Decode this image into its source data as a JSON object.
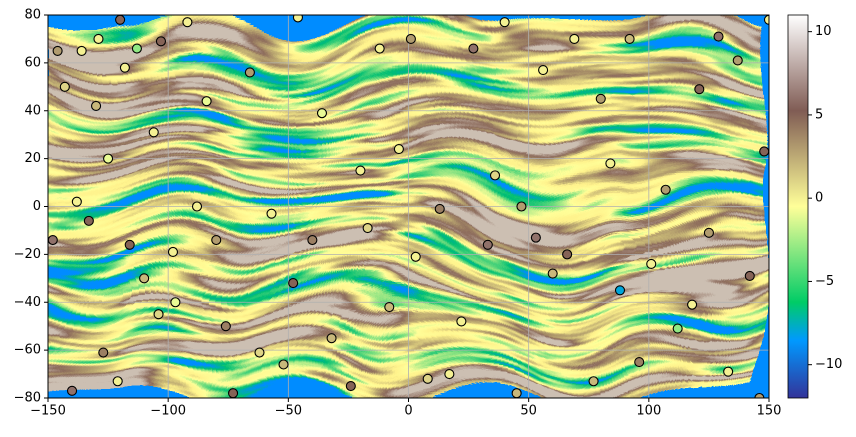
{
  "chart_data": {
    "type": "scatter",
    "x": [
      -148,
      -146,
      -143,
      -140,
      -138,
      -136,
      -133,
      -130,
      -129,
      -127,
      -125,
      -121,
      -120,
      -118,
      -116,
      -113,
      -110,
      -106,
      -104,
      -103,
      -98,
      -97,
      -92,
      -88,
      -84,
      -80,
      -76,
      -73,
      -66,
      -62,
      -57,
      -52,
      -48,
      -46,
      -40,
      -36,
      -32,
      -24,
      -20,
      -17,
      -12,
      -8,
      -4,
      1,
      3,
      8,
      13,
      17,
      22,
      27,
      33,
      36,
      40,
      45,
      47,
      53,
      56,
      60,
      66,
      69,
      77,
      80,
      84,
      88,
      92,
      96,
      101,
      107,
      112,
      118,
      121,
      125,
      129,
      133,
      137,
      142,
      146,
      148,
      150
    ],
    "y": [
      -14,
      65,
      50,
      -77,
      2,
      65,
      -6,
      42,
      70,
      -61,
      20,
      -73,
      78,
      58,
      -16,
      66,
      -30,
      31,
      -45,
      69,
      -19,
      -40,
      77,
      0,
      44,
      -14,
      -50,
      -78,
      56,
      -61,
      -3,
      -66,
      -32,
      79,
      -14,
      39,
      -55,
      -75,
      15,
      -9,
      66,
      -42,
      24,
      70,
      -21,
      -72,
      -1,
      -70,
      -48,
      66,
      -16,
      13,
      77,
      -78,
      0,
      -13,
      57,
      -28,
      -20,
      70,
      -73,
      45,
      18,
      -35,
      70,
      -65,
      -24,
      7,
      -51,
      -41,
      49,
      -11,
      71,
      -69,
      61,
      -29,
      -80,
      23,
      78
    ],
    "values": [
      6,
      3,
      1,
      6,
      0,
      0,
      5,
      2,
      0,
      4,
      -1,
      0,
      5,
      0,
      5,
      -3,
      2,
      0,
      1,
      5,
      0,
      -1,
      0,
      0,
      -1,
      3,
      4,
      5,
      3,
      1,
      0,
      2,
      5,
      0,
      4,
      -1,
      2,
      5,
      0,
      1,
      0,
      2,
      0,
      3,
      0,
      1,
      4,
      0,
      0,
      6,
      6,
      1,
      0,
      2,
      3,
      6,
      0,
      2,
      5,
      0,
      2,
      3,
      0,
      -8,
      2,
      4,
      0,
      3,
      -3,
      0,
      5,
      3,
      6,
      0,
      3,
      5,
      3,
      5,
      0
    ],
    "colormap": "terrain",
    "clim": [
      -12,
      11
    ],
    "cticks": [
      {
        "value": -10,
        "label": "−10"
      },
      {
        "value": -5,
        "label": "−5"
      },
      0,
      5,
      10
    ],
    "xlim": [
      -150,
      150
    ],
    "xticks": [
      {
        "value": -150,
        "label": "−150"
      },
      {
        "value": -100,
        "label": "−100"
      },
      {
        "value": -50,
        "label": "−50"
      },
      0,
      50,
      100,
      150
    ],
    "ylim": [
      -80,
      80
    ],
    "yticks": [
      {
        "value": -80,
        "label": "−80"
      },
      {
        "value": -60,
        "label": "−60"
      },
      {
        "value": -40,
        "label": "−40"
      },
      {
        "value": -20,
        "label": "−20"
      },
      0,
      20,
      40,
      60,
      80
    ],
    "grid": true
  }
}
